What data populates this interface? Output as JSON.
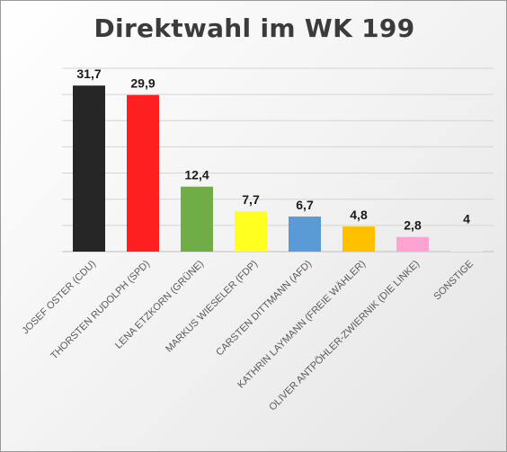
{
  "chart_data": {
    "type": "bar",
    "title": "Direktwahl im WK 199",
    "xlabel": "",
    "ylabel": "",
    "categories": [
      "JOSEF OSTER (CDU)",
      "THORSTEN RUDOLPH (SPD)",
      "LENA ETZKORN (GRÜNE)",
      "MARKUS WIESELER (FDP)",
      "CARSTEN DITTMANN (AFD)",
      "KATHRIN LAYMANN (FREIE WÄHLER)",
      "OLIVER ANTPÖHLER-ZWIERNIK (DIE LINKE)",
      "SONSTIGE"
    ],
    "values": [
      31.7,
      29.9,
      12.4,
      7.7,
      6.7,
      4.8,
      2.8,
      4
    ],
    "value_labels": [
      "31,7",
      "29,9",
      "12,4",
      "7,7",
      "6,7",
      "4,8",
      "2,8",
      "4"
    ],
    "colors": [
      "#262626",
      "#fe2020",
      "#70ad47",
      "#ffff20",
      "#5b9bd5",
      "#ffc000",
      "#ffa3d2",
      "#ececec"
    ],
    "ylim": [
      0,
      35
    ],
    "y_gridline_step": 5,
    "grid": true,
    "legend": "none"
  }
}
